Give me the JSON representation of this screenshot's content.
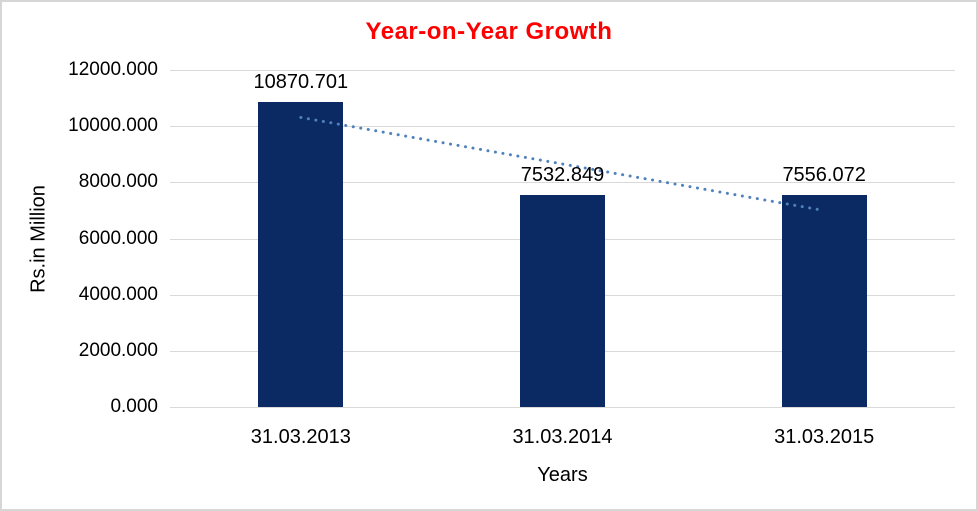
{
  "window": {
    "background": "#FFFFFF",
    "border_color": "#D6D6D6"
  },
  "chart_data": {
    "type": "bar",
    "title": "Year-on-Year Growth",
    "title_color": "#FF0000",
    "xlabel": "Years",
    "ylabel": "Rs.in Million",
    "categories": [
      "31.03.2013",
      "31.03.2014",
      "31.03.2015"
    ],
    "values": [
      10870.701,
      7532.849,
      7556.072
    ],
    "data_labels": [
      "10870.701",
      "7532.849",
      "7556.072"
    ],
    "ylim": [
      0,
      12000
    ],
    "ytick_step": 2000,
    "ytick_labels": [
      "0.000",
      "2000.000",
      "4000.000",
      "6000.000",
      "8000.000",
      "10000.000",
      "12000.000"
    ],
    "tick_decimals": 3,
    "grid": true,
    "legend": "none",
    "bar_color": "#0B2A64",
    "gridline_color": "#D9D9D9",
    "trendline": {
      "type": "linear",
      "style": "dotted",
      "color": "#4F81BD"
    }
  }
}
